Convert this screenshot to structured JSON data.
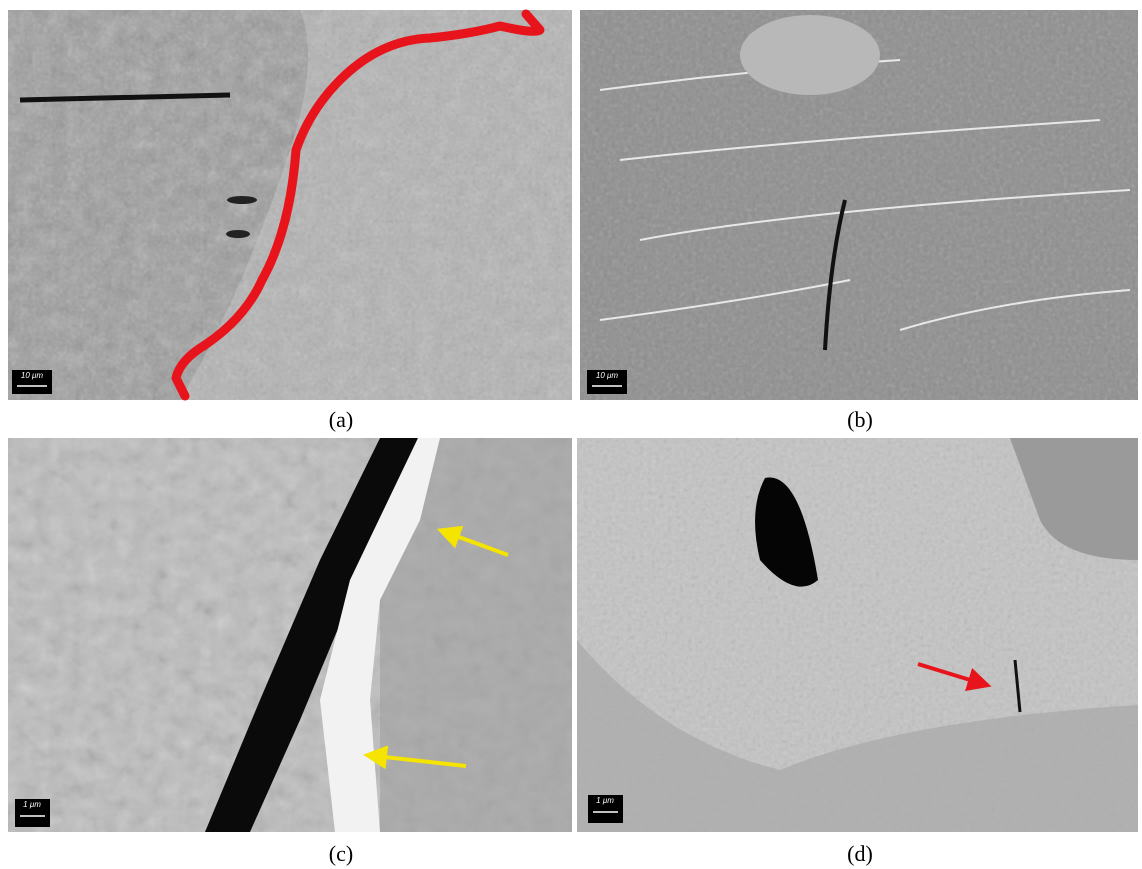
{
  "panels": [
    {
      "label": "(a)",
      "scale_bar": "10 μm"
    },
    {
      "label": "(b)",
      "scale_bar": "10 μm"
    },
    {
      "label": "(c)",
      "scale_bar": "1 μm"
    },
    {
      "label": "(d)",
      "scale_bar": "1 μm"
    }
  ]
}
